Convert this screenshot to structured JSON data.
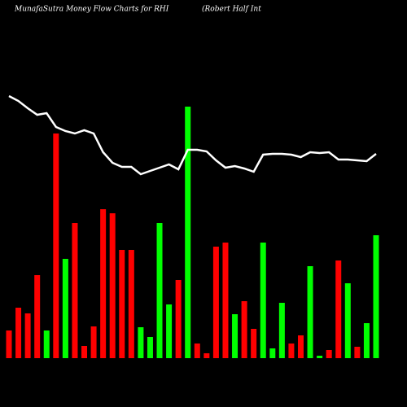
{
  "chart_data": {
    "type": "bar-line",
    "title": "MunafaSutra  Money Flow  Charts for RHI",
    "subtitle": "(Robert Half Int",
    "categories": [
      null,
      null,
      null,
      null,
      null,
      null,
      null,
      null,
      null,
      null,
      null,
      null,
      null,
      null,
      null,
      null,
      null,
      null,
      null,
      null,
      null,
      null,
      null,
      null,
      null,
      null,
      null,
      null,
      null,
      null,
      null,
      null,
      null,
      null,
      null,
      null,
      null,
      null,
      null,
      null
    ],
    "values": [
      34,
      62,
      55,
      102,
      34,
      276,
      122,
      166,
      15,
      39,
      183,
      178,
      133,
      133,
      38,
      26,
      166,
      66,
      96,
      309,
      18,
      6,
      137,
      142,
      54,
      70,
      36,
      142,
      12,
      68,
      18,
      28,
      113,
      3,
      10,
      120,
      92,
      14,
      43,
      151
    ],
    "bar_colors": [
      "#ff0000",
      "#ff0000",
      "#ff0000",
      "#ff0000",
      "#00ff00",
      "#ff0000",
      "#00ff00",
      "#ff0000",
      "#ff0000",
      "#ff0000",
      "#ff0000",
      "#ff0000",
      "#ff0000",
      "#ff0000",
      "#00ff00",
      "#00ff00",
      "#00ff00",
      "#00ff00",
      "#ff0000",
      "#00ff00",
      "#ff0000",
      "#ff0000",
      "#ff0000",
      "#ff0000",
      "#00ff00",
      "#ff0000",
      "#ff0000",
      "#00ff00",
      "#00ff00",
      "#00ff00",
      "#ff0000",
      "#ff0000",
      "#00ff00",
      "#00ff00",
      "#ff0000",
      "#ff0000",
      "#00ff00",
      "#ff0000",
      "#00ff00",
      "#00ff00"
    ],
    "line_values": [
      322,
      316,
      307,
      299,
      301,
      284,
      279,
      276,
      280,
      276,
      253,
      240,
      235,
      235,
      226,
      230,
      234,
      238,
      232,
      256,
      256,
      254,
      243,
      234,
      236,
      233,
      229,
      250,
      251,
      251,
      250,
      247,
      253,
      252,
      253,
      244,
      244,
      243,
      242,
      251
    ],
    "line_color": "#ffffff",
    "ylim": [
      0,
      340
    ]
  }
}
